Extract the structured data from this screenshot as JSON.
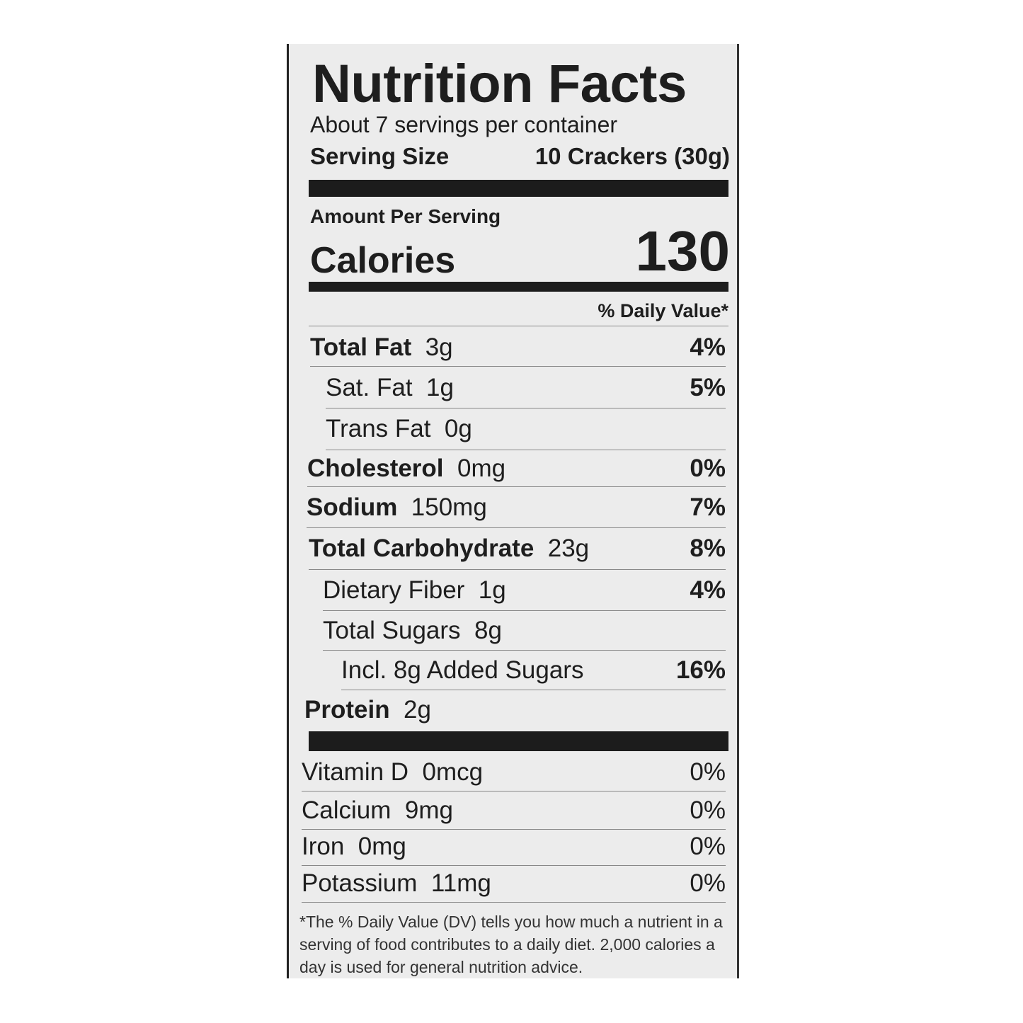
{
  "title": "Nutrition Facts",
  "servings_per_container": "About 7 servings per container",
  "serving_size": {
    "label": "Serving Size",
    "value": "10 Crackers (30g)"
  },
  "amount_per_serving": "Amount Per Serving",
  "calories": {
    "label": "Calories",
    "value": "130"
  },
  "daily_value_header": "% Daily Value*",
  "nutrients": [
    {
      "name": "Total Fat",
      "amount": "3g",
      "dv": "4%"
    },
    {
      "name": "Sat. Fat",
      "amount": "1g",
      "dv": "5%"
    },
    {
      "name": "Trans Fat",
      "amount": "0g",
      "dv": ""
    },
    {
      "name": "Cholesterol",
      "amount": "0mg",
      "dv": "0%"
    },
    {
      "name": "Sodium",
      "amount": "150mg",
      "dv": "7%"
    },
    {
      "name": "Total Carbohydrate",
      "amount": "23g",
      "dv": "8%"
    },
    {
      "name": "Dietary Fiber",
      "amount": "1g",
      "dv": "4%"
    },
    {
      "name": "Total Sugars",
      "amount": "8g",
      "dv": ""
    },
    {
      "name": "Incl. 8g Added Sugars",
      "amount": "",
      "dv": "16%"
    },
    {
      "name": "Protein",
      "amount": "2g",
      "dv": ""
    }
  ],
  "vitamins": [
    {
      "name": "Vitamin D",
      "amount": "0mcg",
      "dv": "0%"
    },
    {
      "name": "Calcium",
      "amount": "9mg",
      "dv": "0%"
    },
    {
      "name": "Iron",
      "amount": "0mg",
      "dv": "0%"
    },
    {
      "name": "Potassium",
      "amount": "11mg",
      "dv": "0%"
    }
  ],
  "footnote": "*The % Daily Value (DV) tells you how much a nutrient in a serving of food contributes to a daily diet. 2,000 calories a day is used for general nutrition advice."
}
